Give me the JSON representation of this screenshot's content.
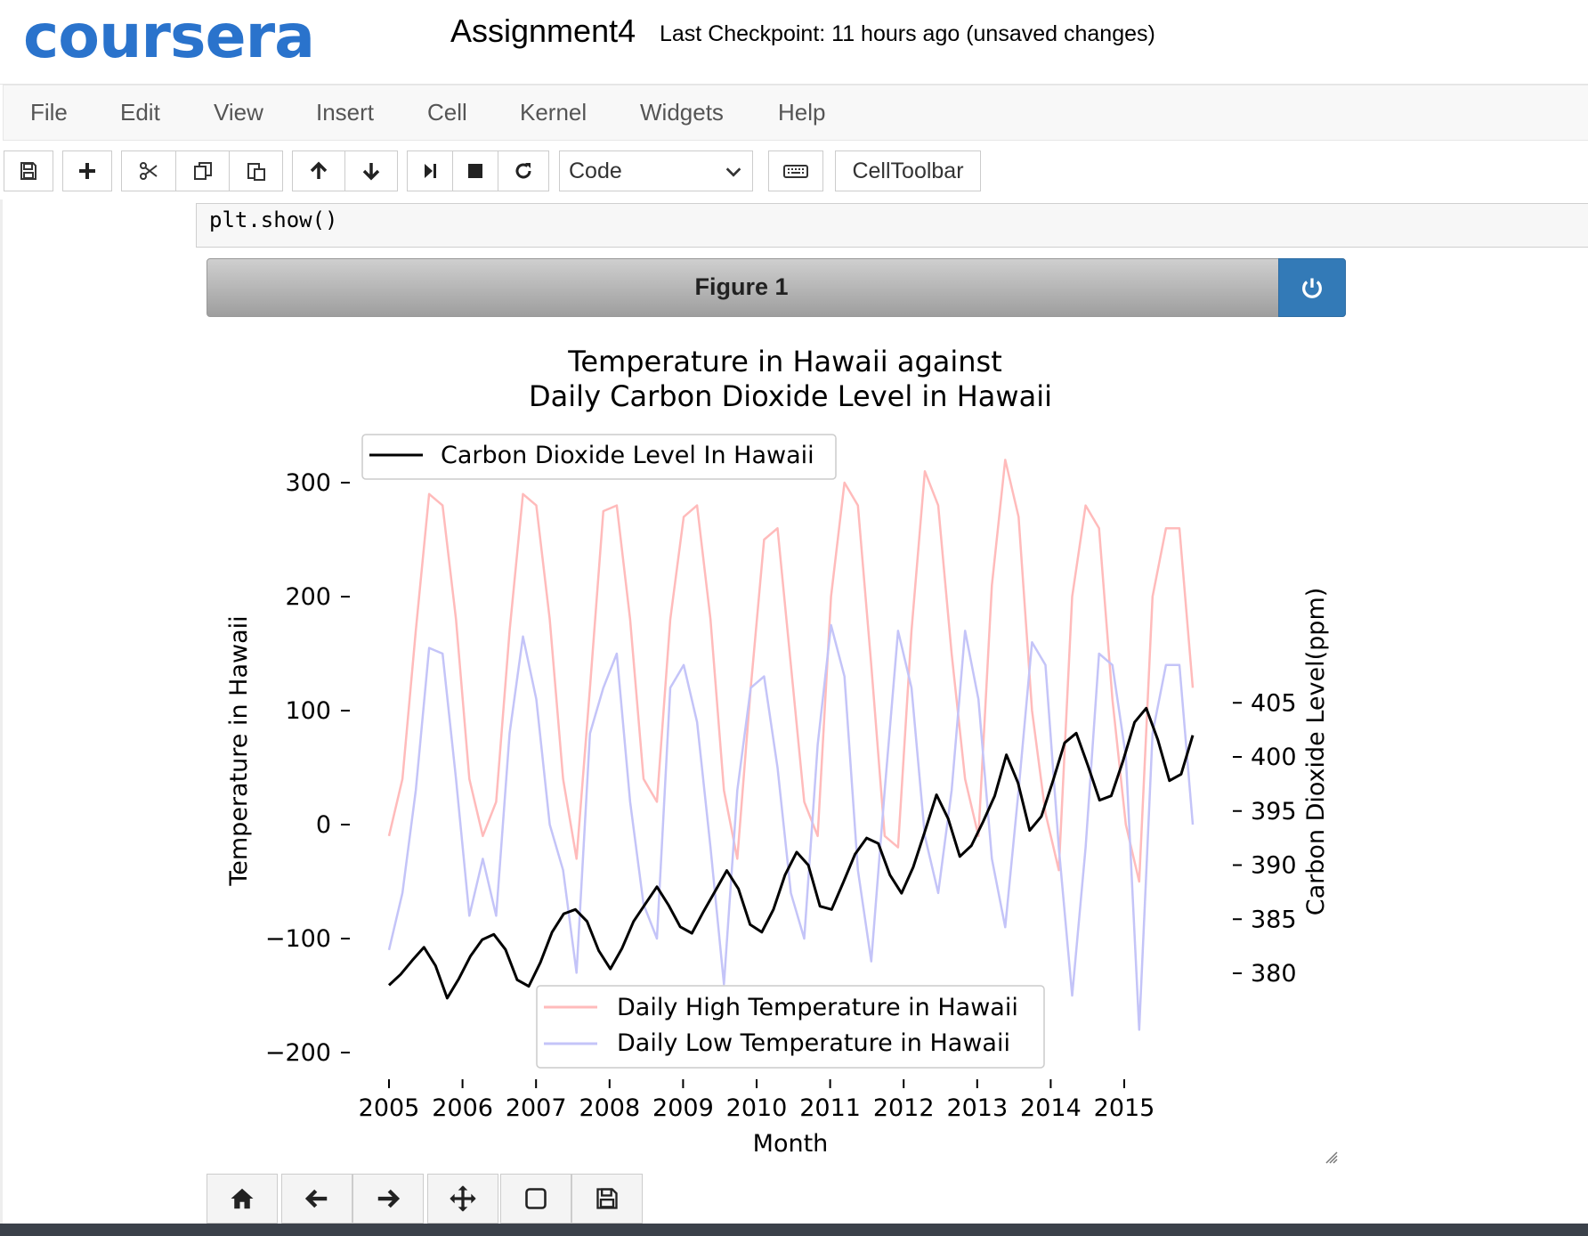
{
  "header": {
    "logo": "coursera",
    "notebook_title": "Assignment4",
    "checkpoint": "Last Checkpoint: 11 hours ago (unsaved changes)"
  },
  "menu": [
    "File",
    "Edit",
    "View",
    "Insert",
    "Cell",
    "Kernel",
    "Widgets",
    "Help"
  ],
  "toolbar": {
    "buttons": [
      "save-icon",
      "plus-icon",
      "cut-icon",
      "copy-icon",
      "paste-icon",
      "arrow-up-icon",
      "arrow-down-icon",
      "run-icon",
      "stop-icon",
      "restart-icon"
    ],
    "cell_type": "Code",
    "keyboard": "keyboard-icon",
    "celltoolbar": "CellToolbar"
  },
  "cell": {
    "code": "plt.show()"
  },
  "figure": {
    "label": "Figure 1",
    "close": "power-icon",
    "nav_buttons": [
      "home-icon",
      "back-icon",
      "forward-icon",
      "move-icon",
      "zoom-icon",
      "save-icon"
    ]
  },
  "chart_data": {
    "type": "line",
    "title_line1": "Temperature in Hawaii against",
    "title_line2": "Daily Carbon Dioxide Level in Hawaii",
    "xlabel": "Month",
    "ylabel_left": "Temperature in Hawaii",
    "ylabel_right": "Carbon Dioxide Level(ppm)",
    "xticks": [
      "2005",
      "2006",
      "2007",
      "2008",
      "2009",
      "2010",
      "2011",
      "2012",
      "2013",
      "2014",
      "2015"
    ],
    "xrange": [
      2005.0,
      2015.95
    ],
    "yticks_left": [
      "300",
      "200",
      "100",
      "0",
      "−100",
      "−200"
    ],
    "ytick_left_values": [
      300,
      200,
      100,
      0,
      -100,
      -200
    ],
    "ylim_left": [
      -225,
      340
    ],
    "yticks_right": [
      "405",
      "400",
      "395",
      "390",
      "385",
      "380"
    ],
    "ytick_right_values": [
      405,
      400,
      395,
      390,
      385,
      380
    ],
    "ylim_right": [
      376,
      406.5
    ],
    "legend_top": "Carbon Dioxide Level In Hawaii",
    "legend_bottom": [
      "Daily High Temperature in Hawaii",
      "Daily Low Temperature in Hawaii"
    ],
    "colors": {
      "high": "#ffbbbb",
      "low": "#c4c4f8",
      "co2": "#000000"
    },
    "series": [
      {
        "name": "Daily High Temperature in Hawaii",
        "axis": "left",
        "values": [
          -10,
          40,
          170,
          290,
          280,
          180,
          40,
          -10,
          20,
          170,
          290,
          280,
          180,
          40,
          -30,
          120,
          275,
          280,
          180,
          40,
          20,
          180,
          270,
          280,
          180,
          30,
          -30,
          120,
          250,
          260,
          140,
          20,
          -10,
          200,
          300,
          280,
          140,
          -10,
          -20,
          170,
          310,
          280,
          150,
          40,
          -10,
          210,
          320,
          270,
          100,
          10,
          -40,
          200,
          280,
          260,
          110,
          0,
          -50,
          200,
          260,
          260,
          120
        ]
      },
      {
        "name": "Daily Low Temperature in Hawaii",
        "axis": "left",
        "values": [
          -110,
          -60,
          30,
          155,
          150,
          40,
          -80,
          -30,
          -80,
          80,
          165,
          110,
          0,
          -40,
          -130,
          80,
          120,
          150,
          20,
          -70,
          -100,
          120,
          140,
          90,
          -20,
          -140,
          30,
          120,
          130,
          50,
          -60,
          -100,
          70,
          175,
          130,
          -40,
          -120,
          30,
          170,
          120,
          -10,
          -60,
          30,
          170,
          110,
          -30,
          -90,
          30,
          160,
          140,
          -20,
          -150,
          -20,
          150,
          140,
          60,
          -180,
          80,
          140,
          140,
          0
        ]
      },
      {
        "name": "Carbon Dioxide Level In Hawaii",
        "axis": "right",
        "values": [
          378.9,
          379.9,
          381.2,
          382.4,
          380.7,
          377.7,
          379.5,
          381.6,
          383.1,
          383.6,
          382.2,
          379.4,
          378.8,
          381.0,
          383.8,
          385.5,
          385.9,
          384.8,
          382.1,
          380.4,
          382.3,
          384.8,
          386.4,
          388.0,
          386.3,
          384.3,
          383.7,
          385.7,
          387.6,
          389.5,
          387.8,
          384.5,
          383.8,
          385.9,
          389.1,
          391.2,
          390.0,
          386.2,
          385.9,
          388.4,
          391.0,
          392.5,
          392.0,
          389.1,
          387.4,
          389.8,
          393.1,
          396.5,
          394.3,
          390.8,
          391.8,
          394.0,
          396.4,
          400.2,
          397.6,
          393.2,
          394.5,
          397.8,
          401.3,
          402.2,
          399.2,
          396.0,
          396.4,
          399.6,
          403.2,
          404.5,
          401.6,
          397.8,
          398.4,
          402.0
        ]
      }
    ]
  }
}
